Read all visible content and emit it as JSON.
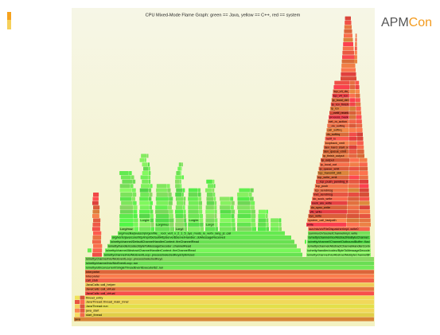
{
  "header": {
    "title": "CPU Mixed-Mode Flame Graph: green == Java, yellow == C++, red == system",
    "logo": {
      "primary": "APM",
      "accent": "Con"
    }
  },
  "frames": {
    "base": [
      "java",
      "start_thread",
      "java_start",
      "JavaThread::run",
      "JavaThread::thread_main_inner",
      "thread_entry",
      "JavaCalls::call_virtual",
      "JavaCalls::call_virtual",
      "JavaCalls::call_helper",
      "call_stub",
      "Interpreter",
      "Interpreter"
    ],
    "java": [
      "io/netty/util/concurrent/SingleThreadEventExecutor$2:.run",
      "io/netty/channel/nio/NioEventLoop:.run",
      "io/netty/channel/nio/NioEventLoop:.processSelectedKeys",
      "io/netty/channel/nio/NioEventLoop:.processSelectedKeysOptimized",
      "io/netty/channel/AbstractChannelHandlerContext:.fireChannelRead",
      "io/netty/handler/codec/ByteToMessageDecoder:.channelRead",
      "io/netty/channel/DefaultChannelHandlerContext:.fireChannelRead",
      "org/vertx/java/core/http/impl/DefaultHttpServer$ServerHandler:.doMessageReceived",
      "org/mozilla/javascript/gen/file__root_vert_x_2_1_5_sys_mods_io_vertx_lang_js:.call"
    ],
    "right_java": [
      "io/netty/channel/nio/AbstractNioByteChannel$NioByteUnsafe:.read",
      "io/netty/handler/codec/ByteToMessageDecoder:.channelRead",
      "io/netty/channel/AbstractChannelHandlerContext:.write",
      "io/netty/channel/ChannelOutboundBuffer:.flush",
      "io/netty/channel/nio/AbstractNioByteChannel:.doWrite",
      "sun/nio/ch/SocketChannelImpl:.write",
      "sun/nio/ch/FileDispatcherImpl:.write0"
    ],
    "tower": [
      "Lorg/mozilla/javascript/Interpreter:.interpretLoop",
      "Lorg/mozilla/javascript/ScriptRuntime:.name",
      "Lorg/mozilla/javascript/NativeJavaObject:.get",
      "Lorg/mozilla/javascript/gen/file_js:.call",
      "Lorg/mozilla/javascript/MemberBox:.invoke",
      "Lorg/mozilla/javascript/ScriptableObject:.getProperty"
    ],
    "kernel": [
      "write",
      "system_call_fastpath",
      "sys_write",
      "vfs_write",
      "do_sync_write",
      "sock_aio_write",
      "do_sock_write",
      "inet_sendmsg",
      "tcp_sendmsg",
      "tcp_push",
      "__tcp_push_pending_frames",
      "tcp_write_xmit",
      "tcp_transmit_skb",
      "ip_queue_xmit",
      "ip_local_out",
      "ip_output",
      "ip_finish_output",
      "dev_queue_xmit",
      "dev_hard_start_xmit",
      "loopback_xmit",
      "netif_rx",
      "do_softirq",
      "call_softirq",
      "__do_softirq",
      "net_rx_action",
      "process_backlog",
      "__netif_receive_skb",
      "ip_rcv",
      "ip_rcv_finish",
      "ip_local_deliver",
      "tcp_v4_rcv",
      "tcp_v4_do_rcv"
    ]
  }
}
